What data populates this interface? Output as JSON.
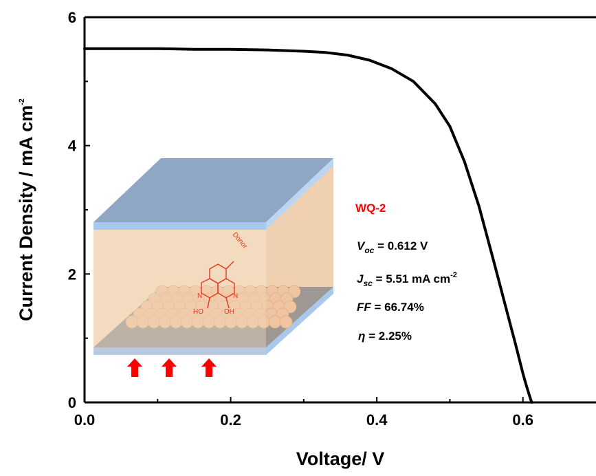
{
  "chart_data": {
    "type": "line",
    "title": "",
    "xlabel": "Voltage/ V",
    "ylabel": "Current Density / mA cm",
    "ylabel_sup": "-2",
    "xlim": [
      0.0,
      0.7
    ],
    "ylim": [
      0,
      6
    ],
    "x_ticks": [
      "0.0",
      "0.2",
      "0.4",
      "0.6"
    ],
    "y_ticks": [
      "0",
      "2",
      "4",
      "6"
    ],
    "grid": false,
    "series": [
      {
        "color": "#000000",
        "x": [
          0.0,
          0.05,
          0.1,
          0.15,
          0.2,
          0.25,
          0.3,
          0.33,
          0.36,
          0.39,
          0.42,
          0.45,
          0.48,
          0.5,
          0.52,
          0.54,
          0.56,
          0.575,
          0.59,
          0.6,
          0.605,
          0.61,
          0.612
        ],
        "y": [
          5.51,
          5.51,
          5.51,
          5.5,
          5.5,
          5.49,
          5.47,
          5.45,
          5.41,
          5.33,
          5.2,
          5.0,
          4.65,
          4.3,
          3.75,
          3.05,
          2.2,
          1.55,
          0.9,
          0.45,
          0.25,
          0.07,
          0.0
        ]
      }
    ],
    "annotations": {
      "device": "WQ-2",
      "voc_symbol": "V",
      "voc_sub": "oc",
      "voc_text": " = 0.612 V",
      "jsc_symbol": "J",
      "jsc_sub": "sc",
      "jsc_text": " = 5.51 mA cm",
      "jsc_sup": "-2",
      "ff_symbol": "FF",
      "ff_text": " = 66.74%",
      "eta_symbol": "η",
      "eta_text": " = 2.25%"
    }
  },
  "inset": {
    "donor_label": "Donor",
    "n_left": "N",
    "n_right": "N",
    "oh_left": "HO",
    "oh_right": "OH",
    "colors": {
      "electrode": "#8fa6c4",
      "electrode_edge": "#a9c8ec",
      "electrolyte": "#f2d6b8",
      "substrate": "#8e8e8e",
      "particles": "#efc4a0",
      "arrows": "#ff0000",
      "dye": "#e8361e"
    }
  }
}
